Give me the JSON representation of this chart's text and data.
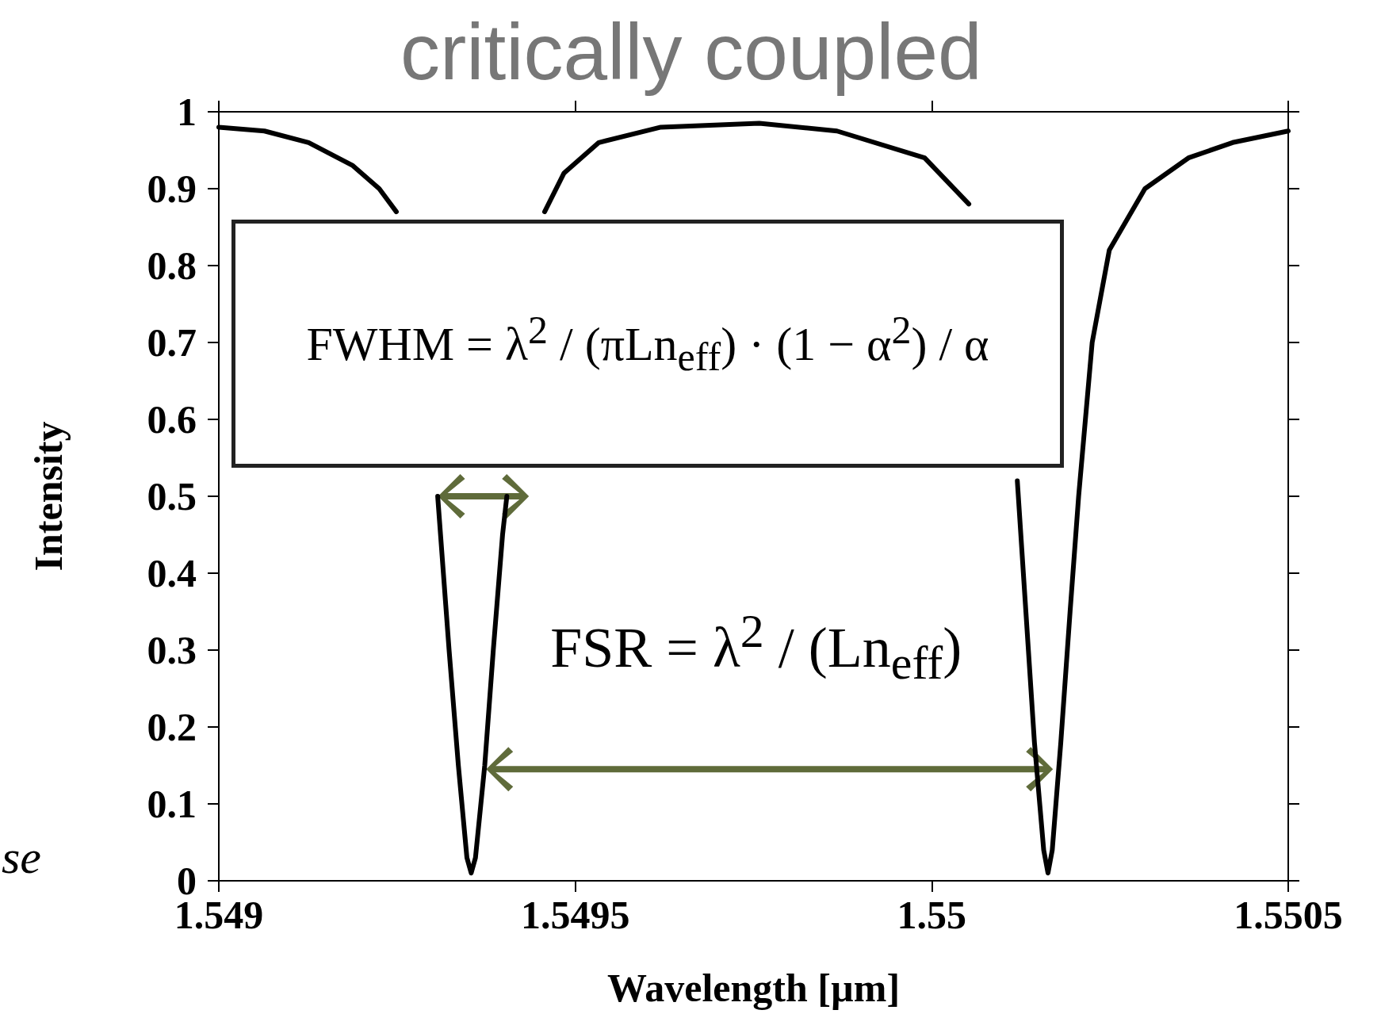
{
  "chart_data": {
    "type": "line",
    "title": "critically coupled",
    "xlabel": "Wavelength [µm]",
    "ylabel": "Intensity",
    "x": [
      1.549,
      1.549064,
      1.549126,
      1.549188,
      1.549225,
      1.549249,
      1.54927,
      1.549307,
      1.549311,
      1.549323,
      1.549336,
      1.549348,
      1.549354,
      1.54936,
      1.549373,
      1.549385,
      1.549398,
      1.549404,
      1.54942,
      1.549457,
      1.549484,
      1.549533,
      1.54962,
      1.549758,
      1.549867,
      1.54999,
      1.550052,
      1.55008,
      1.55012,
      1.550132,
      1.550144,
      1.550157,
      1.550163,
      1.550169,
      1.550181,
      1.550194,
      1.550206,
      1.550225,
      1.550249,
      1.550299,
      1.55036,
      1.550422,
      1.5505
    ],
    "series": [
      {
        "color": "#000000",
        "values": [
          0.98,
          0.975,
          0.96,
          0.93,
          0.9,
          0.87,
          null,
          0.5,
          0.45,
          0.3,
          0.15,
          0.03,
          0.01,
          0.03,
          0.15,
          0.3,
          0.45,
          0.5,
          null,
          0.87,
          0.92,
          0.96,
          0.98,
          0.985,
          0.975,
          0.94,
          0.88,
          null,
          0.52,
          0.35,
          0.18,
          0.04,
          0.01,
          0.04,
          0.18,
          0.35,
          0.5,
          0.7,
          0.82,
          0.9,
          0.94,
          0.96,
          0.975
        ]
      }
    ],
    "xlim": [
      1.549,
      1.5505
    ],
    "xticks": [
      1.549,
      1.5495,
      1.55,
      1.5505
    ],
    "ylim": [
      0,
      1
    ],
    "yticks": [
      0,
      0.1,
      0.2,
      0.3,
      0.4,
      0.5,
      0.6,
      0.7,
      0.8,
      0.9,
      1
    ],
    "grid": false,
    "marker": "none",
    "line_style": "solid",
    "annotations": [
      "FWHM = λ$^{2}$ / (πLn$_{eff}$) · (1 − α$^{2}$) / α",
      "FSR = λ$^{2}$ / (Ln$_{eff}$)",
      "se"
    ]
  }
}
